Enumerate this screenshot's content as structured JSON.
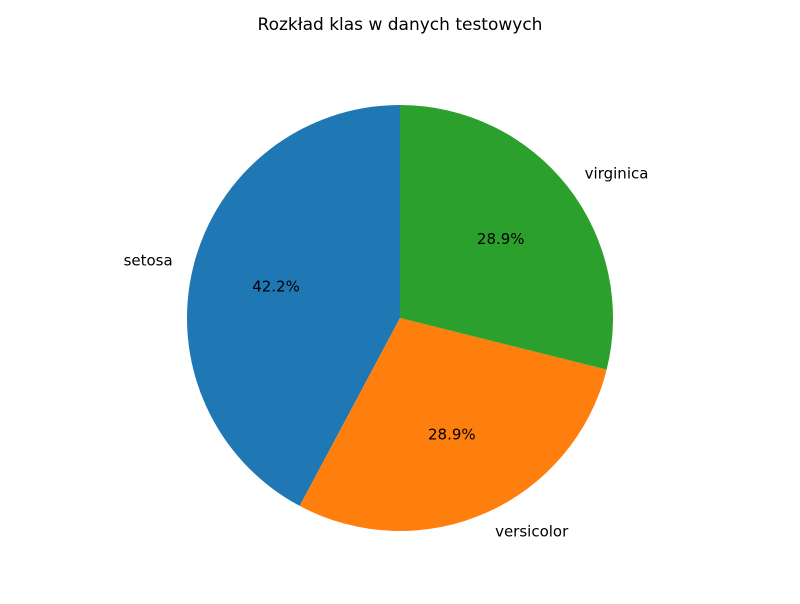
{
  "chart_data": {
    "type": "pie",
    "title": "Rozkład klas w danych testowych",
    "labels": [
      "setosa",
      "versicolor",
      "virginica"
    ],
    "values": [
      42.2,
      28.9,
      28.9
    ],
    "value_labels": [
      "42.2%",
      "28.9%",
      "28.9%"
    ],
    "colors": [
      "#1f77b4",
      "#ff7f0e",
      "#2ca02c"
    ],
    "start_angle_deg": 90,
    "direction": "counterclockwise"
  }
}
